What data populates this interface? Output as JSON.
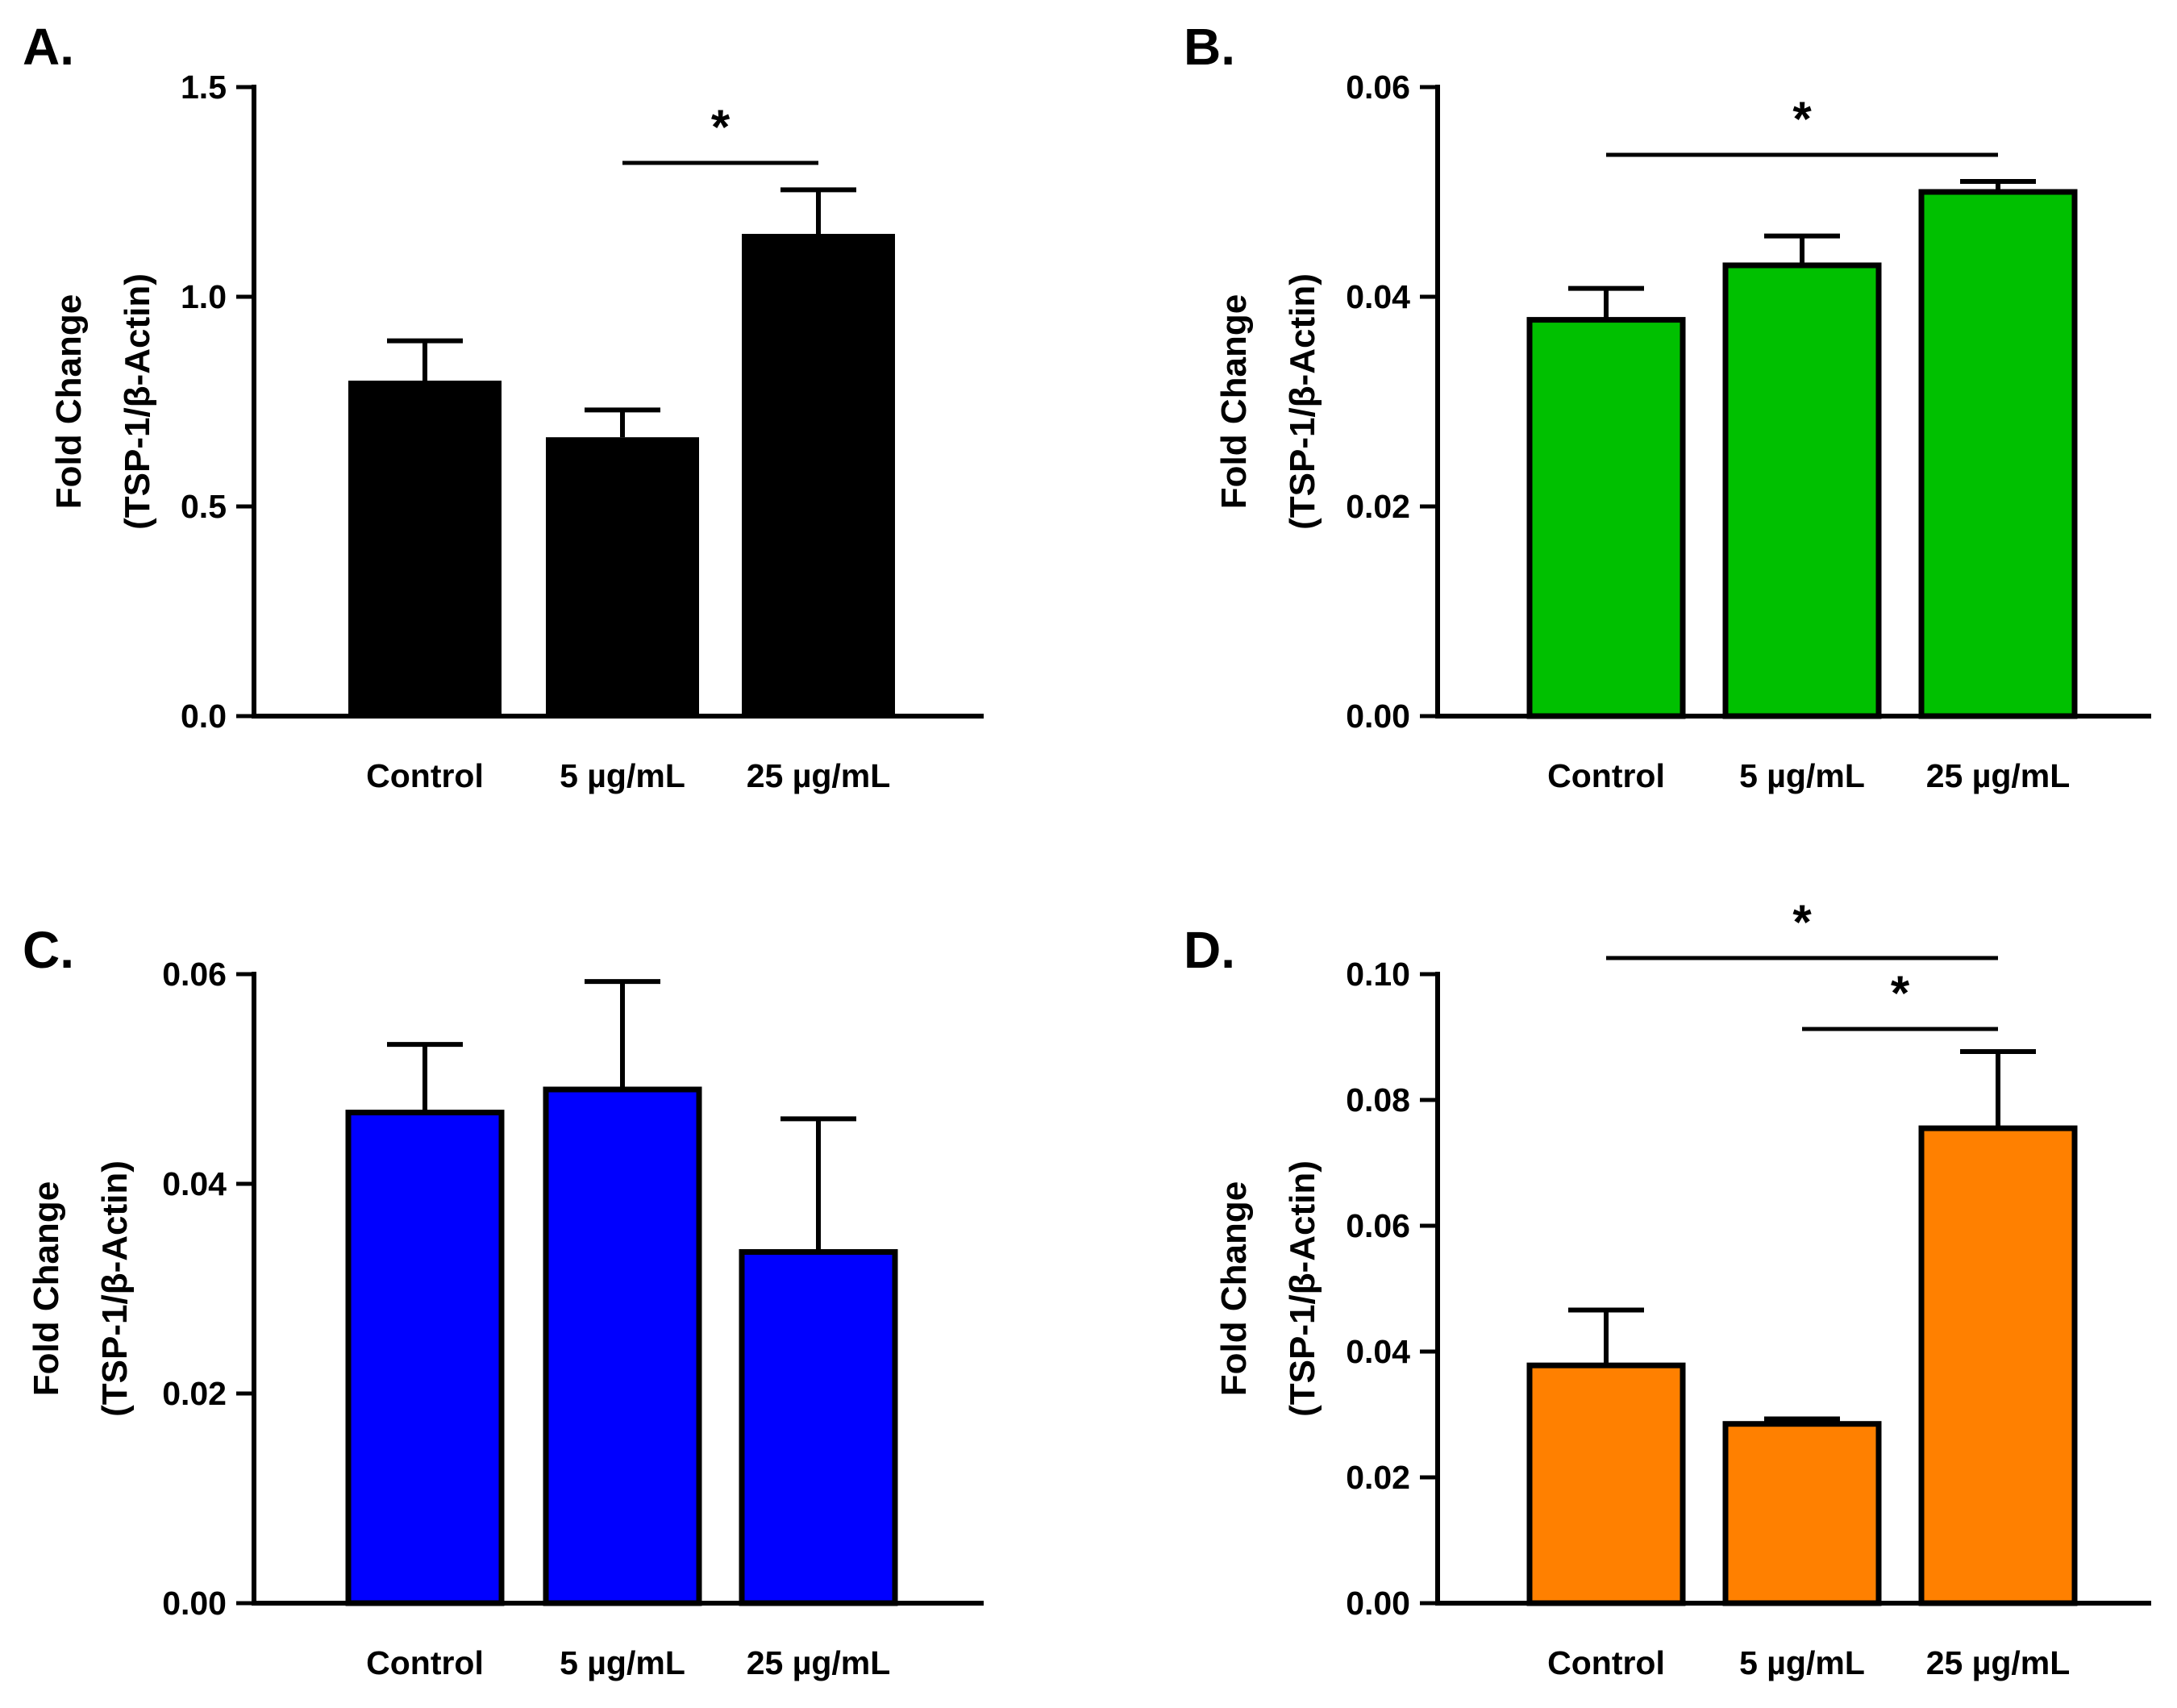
{
  "figure": {
    "chart_data": [
      {
        "panel": "A.",
        "type": "bar",
        "categories": [
          "Control",
          "5 µg/mL",
          "25 µg/mL"
        ],
        "values": [
          0.8,
          0.665,
          1.15
        ],
        "errors": [
          0.095,
          0.065,
          0.105
        ],
        "ylabel": [
          "Fold Change",
          "(TSP-1/β-Actin)"
        ],
        "ylim": [
          0,
          1.5
        ],
        "yticks": [
          "0.0",
          "0.5",
          "1.0",
          "1.5"
        ],
        "bar_color": "#000000",
        "significance": [
          {
            "from": 1,
            "to": 2,
            "label": "*"
          }
        ]
      },
      {
        "panel": "B.",
        "type": "bar",
        "categories": [
          "Control",
          "5 µg/mL",
          "25 µg/mL"
        ],
        "values": [
          0.0378,
          0.043,
          0.05
        ],
        "errors": [
          0.003,
          0.0028,
          0.001
        ],
        "ylabel": [
          "Fold Change",
          "(TSP-1/β-Actin)"
        ],
        "ylim": [
          0,
          0.06
        ],
        "yticks": [
          "0.00",
          "0.02",
          "0.04",
          "0.06"
        ],
        "bar_color": "#00c000",
        "significance": [
          {
            "from": 0,
            "to": 2,
            "label": "*"
          }
        ]
      },
      {
        "panel": "C.",
        "type": "bar",
        "categories": [
          "Control",
          "5 µg/mL",
          "25 µg/mL"
        ],
        "values": [
          0.0468,
          0.049,
          0.0335
        ],
        "errors": [
          0.0065,
          0.0103,
          0.0127
        ],
        "ylabel": [
          "Fold Change",
          "(TSP-1/β-Actin)"
        ],
        "ylim": [
          0,
          0.06
        ],
        "yticks": [
          "0.00",
          "0.02",
          "0.04",
          "0.06"
        ],
        "bar_color": "#0000ff",
        "significance": []
      },
      {
        "panel": "D.",
        "type": "bar",
        "categories": [
          "Control",
          "5 µg/mL",
          "25 µg/mL"
        ],
        "values": [
          0.0378,
          0.0285,
          0.0755
        ],
        "errors": [
          0.0088,
          0.0008,
          0.0122
        ],
        "ylabel": [
          "Fold Change",
          "(TSP-1/β-Actin)"
        ],
        "ylim": [
          0,
          0.1
        ],
        "yticks": [
          "0.00",
          "0.02",
          "0.04",
          "0.06",
          "0.08",
          "0.10"
        ],
        "bar_color": "#ff8000",
        "significance": [
          {
            "from": 0,
            "to": 2,
            "label": "*"
          },
          {
            "from": 1,
            "to": 2,
            "label": "*"
          }
        ]
      }
    ]
  }
}
